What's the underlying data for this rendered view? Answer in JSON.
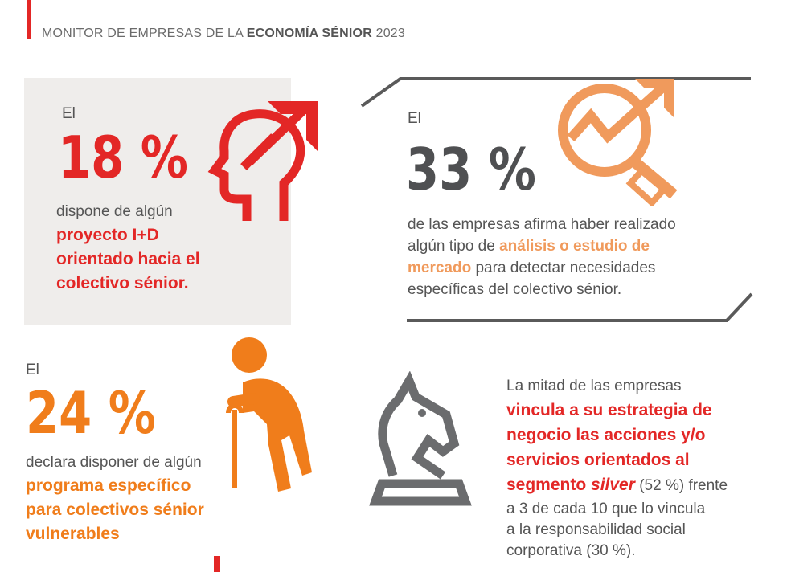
{
  "header": {
    "prefix": "MONITOR DE EMPRESAS DE LA ",
    "highlight": "ECONOMÍA SÉNIOR",
    "year": " 2023"
  },
  "block1": {
    "intro": "El",
    "percent": "18 %",
    "line1": "dispone de algún",
    "bold1": "proyecto I+D",
    "bold2": "orientado hacia el",
    "bold3": "colectivo sénior."
  },
  "block2": {
    "intro": "El",
    "percent": "33 %",
    "line1": "de las empresas afirma haber realizado",
    "line2a": "algún tipo de ",
    "bold2": "análisis o estudio de",
    "bold3": "mercado",
    "line3b": " para detectar necesidades",
    "line4": "específicas del colectivo sénior."
  },
  "block3": {
    "intro": "El",
    "percent": "24 %",
    "line1": "declara disponer de algún",
    "bold1": "programa específico",
    "bold2": "para colectivos sénior",
    "bold3": "vulnerables"
  },
  "block4": {
    "line1": "La mitad de las empresas",
    "bold1": "vincula a su estrategia de",
    "bold2": "negocio las acciones y/o",
    "bold3": "servicios orientados al",
    "bold4a": "segmento ",
    "bold4i": "silver",
    "line4b": " (52 %) frente",
    "line5": "a 3 de cada 10 que lo vincula",
    "line6": "a la responsabilidad social",
    "line7": "corporativa (30 %)."
  },
  "colors": {
    "red": "#e32726",
    "orange": "#f07d1b",
    "light_orange": "#f09a5c",
    "dark_gray": "#4f5052",
    "panel": "#efedeb"
  },
  "icons": [
    "head-growth-icon",
    "magnifier-growth-icon",
    "elderly-person-cane-icon",
    "chess-knight-icon"
  ]
}
